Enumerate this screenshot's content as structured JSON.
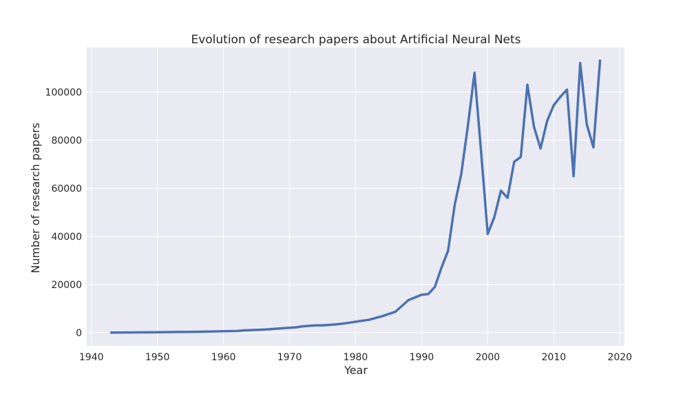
{
  "colors": {
    "plot_background": "#EAEAF2",
    "grid": "#ffffff",
    "line": "#4C72B0",
    "text": "#262626"
  },
  "chart_data": {
    "type": "line",
    "title": "Evolution of research papers about Artificial Neural Nets",
    "xlabel": "Year",
    "ylabel": "Number of research papers",
    "xlim": [
      1939.3,
      2020.7
    ],
    "ylim": [
      -5500,
      118500
    ],
    "xticks": [
      1940,
      1950,
      1960,
      1970,
      1980,
      1990,
      2000,
      2010,
      2020
    ],
    "yticks": [
      0,
      20000,
      40000,
      60000,
      80000,
      100000
    ],
    "xtick_labels": [
      "1940",
      "1950",
      "1960",
      "1970",
      "1980",
      "1990",
      "2000",
      "2010",
      "2020"
    ],
    "ytick_labels": [
      "0",
      "20000",
      "40000",
      "60000",
      "80000",
      "100000"
    ],
    "grid": true,
    "series": [
      {
        "x": [
          1943,
          1945,
          1950,
          1955,
          1958,
          1960,
          1962,
          1963,
          1965,
          1967,
          1969,
          1971,
          1972,
          1974,
          1975,
          1977,
          1978,
          1980,
          1982,
          1984,
          1986,
          1988,
          1990,
          1991,
          1992,
          1993,
          1994,
          1995,
          1996,
          1997,
          1998,
          1999,
          2000,
          2001,
          2002,
          2003,
          2004,
          2005,
          2006,
          2007,
          2008,
          2009,
          2010,
          2011,
          2012,
          2013,
          2014,
          2015,
          2016,
          2017
        ],
        "values": [
          0,
          50,
          150,
          300,
          450,
          550,
          650,
          900,
          1100,
          1400,
          1800,
          2200,
          2600,
          3000,
          3000,
          3400,
          3700,
          4500,
          5300,
          6800,
          8600,
          13500,
          15700,
          16000,
          19000,
          27000,
          34000,
          53000,
          66000,
          86000,
          108000,
          75000,
          41000,
          48000,
          59000,
          56000,
          71000,
          73000,
          103000,
          85500,
          76500,
          88000,
          94500,
          98000,
          101000,
          65000,
          112000,
          86500,
          77000,
          113000
        ]
      }
    ]
  }
}
